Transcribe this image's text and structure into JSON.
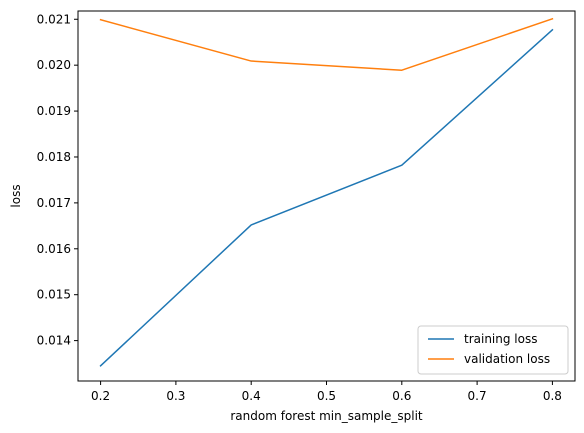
{
  "chart_data": {
    "type": "line",
    "xlabel": "random forest min_sample_split",
    "ylabel": "loss",
    "x": [
      0.2,
      0.4,
      0.6,
      0.8
    ],
    "xlim": [
      0.17,
      0.83
    ],
    "ylim": [
      0.01312,
      0.02118
    ],
    "x_ticks": [
      0.2,
      0.3,
      0.4,
      0.5,
      0.6,
      0.7,
      0.8
    ],
    "x_tick_labels": [
      "0.2",
      "0.3",
      "0.4",
      "0.5",
      "0.6",
      "0.7",
      "0.8"
    ],
    "y_ticks": [
      0.014,
      0.015,
      0.016,
      0.017,
      0.018,
      0.019,
      0.02,
      0.021
    ],
    "y_tick_labels": [
      "0.014",
      "0.015",
      "0.016",
      "0.017",
      "0.018",
      "0.019",
      "0.020",
      "0.021"
    ],
    "grid": false,
    "legend_position": "lower-right",
    "series": [
      {
        "name": "training loss",
        "color": "#1f77b4",
        "values": [
          0.01345,
          0.01652,
          0.01782,
          0.02077
        ]
      },
      {
        "name": "validation loss",
        "color": "#ff7f0e",
        "values": [
          0.02099,
          0.02009,
          0.01989,
          0.02101
        ]
      }
    ]
  }
}
